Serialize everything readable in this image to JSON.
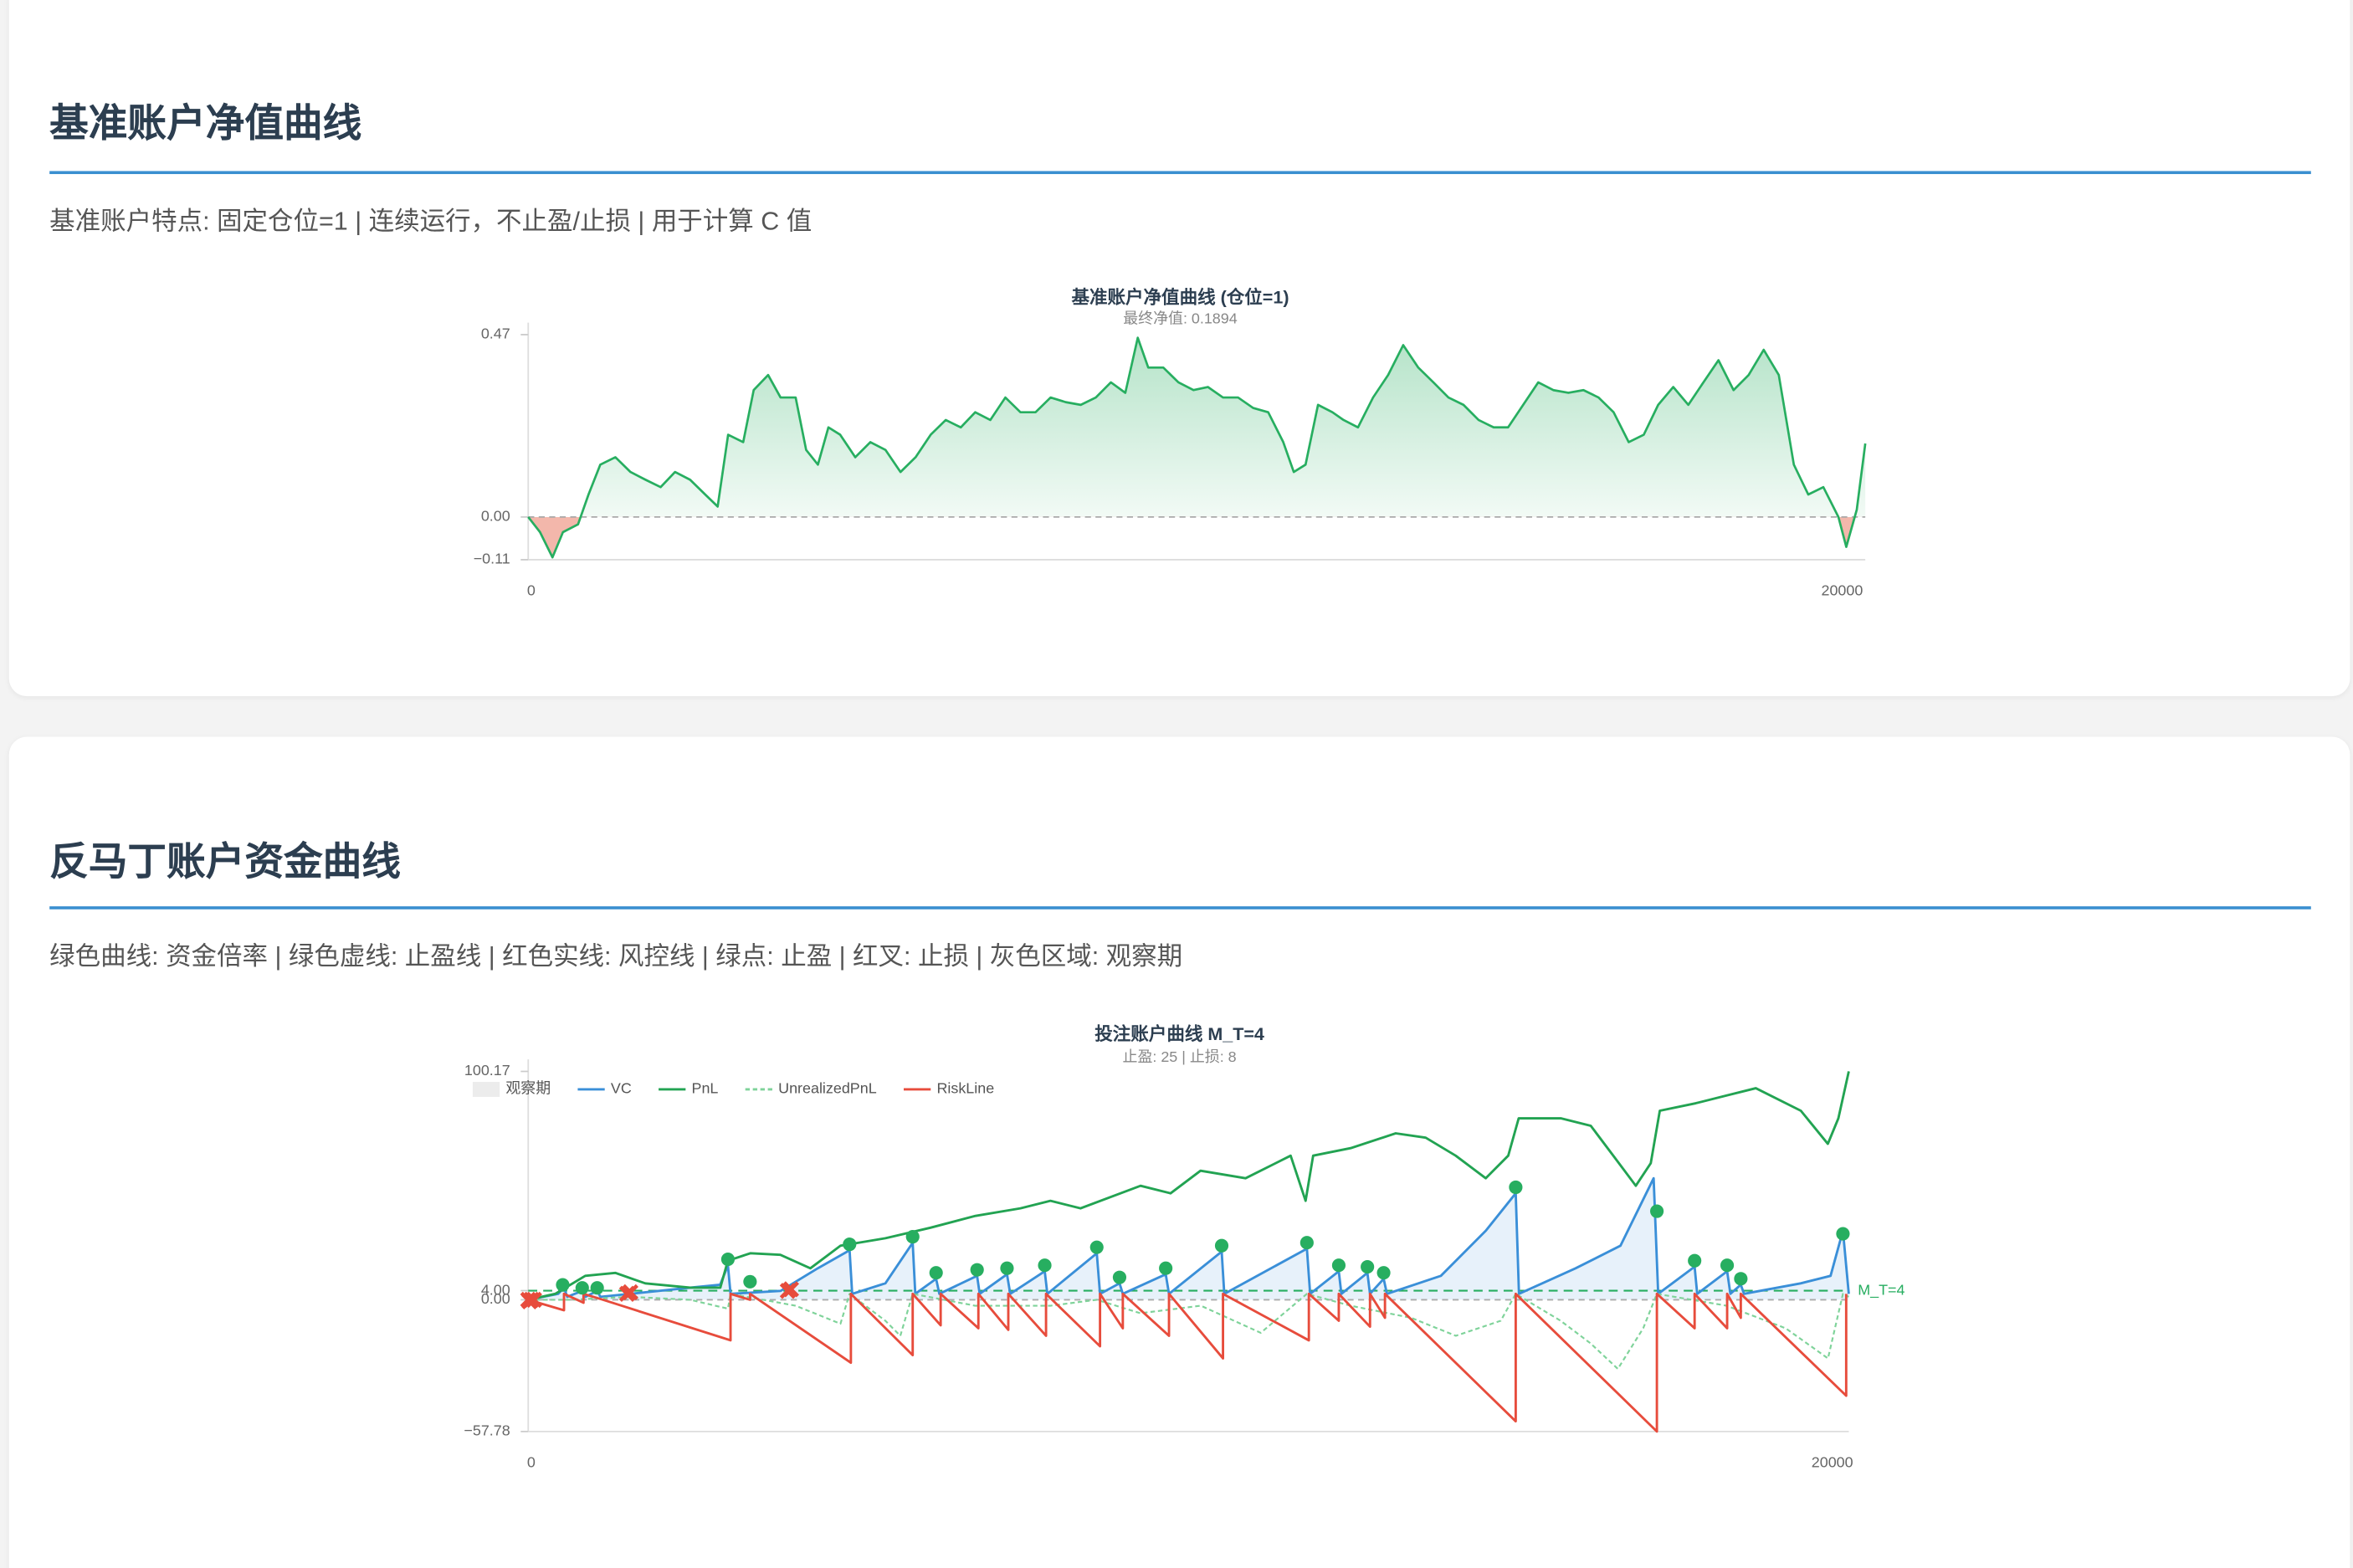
{
  "sections": [
    {
      "heading": "基准账户净值曲线",
      "description": "基准账户特点: 固定仓位=1 | 连续运行，不止盈/止损 | 用于计算 C 值"
    },
    {
      "heading": "反马丁账户资金曲线",
      "description": "绿色曲线: 资金倍率 | 绿色虚线: 止盈线 | 红色实线: 风控线 | 绿点: 止盈 | 红叉: 止损 | 灰色区域: 观察期"
    }
  ],
  "chart_data": [
    {
      "type": "area",
      "title": "基准账户净值曲线 (仓位=1)",
      "subtitle": "最终净值: 0.1894",
      "color": "#27ae60",
      "negative_color": "#ef9f8f",
      "zero_line": true,
      "xlim": [
        0,
        20400
      ],
      "ylim": [
        -0.11,
        0.47
      ],
      "xticks": [
        0,
        20000
      ],
      "yticks": [
        {
          "value": -0.11,
          "label": "−0.11"
        },
        {
          "value": 0,
          "label": "0.00"
        },
        0.47
      ],
      "x": [
        0,
        180,
        370,
        530,
        760,
        920,
        1100,
        1330,
        1560,
        1790,
        2020,
        2240,
        2470,
        2700,
        2890,
        3050,
        3280,
        3440,
        3660,
        3850,
        4080,
        4240,
        4420,
        4580,
        4760,
        4990,
        5220,
        5450,
        5680,
        5910,
        6140,
        6370,
        6600,
        6820,
        7050,
        7280,
        7510,
        7740,
        7970,
        8200,
        8430,
        8660,
        8890,
        9110,
        9300,
        9460,
        9690,
        9920,
        10150,
        10370,
        10600,
        10830,
        11060,
        11290,
        11520,
        11680,
        11860,
        12050,
        12270,
        12440,
        12660,
        12890,
        13120,
        13350,
        13580,
        13810,
        14040,
        14270,
        14500,
        14730,
        14950,
        15180,
        15410,
        15640,
        15870,
        16100,
        16330,
        16560,
        16790,
        17020,
        17240,
        17470,
        17700,
        17930,
        18160,
        18390,
        18620,
        18850,
        19080,
        19310,
        19530,
        19760,
        19990,
        20110,
        20270,
        20400
      ],
      "values": [
        0,
        -0.039,
        -0.104,
        -0.039,
        -0.019,
        0.058,
        0.135,
        0.154,
        0.116,
        0.096,
        0.077,
        0.116,
        0.096,
        0.058,
        0.027,
        0.212,
        0.193,
        0.327,
        0.366,
        0.308,
        0.308,
        0.173,
        0.135,
        0.231,
        0.212,
        0.154,
        0.193,
        0.173,
        0.116,
        0.154,
        0.212,
        0.25,
        0.231,
        0.27,
        0.25,
        0.308,
        0.27,
        0.27,
        0.308,
        0.296,
        0.289,
        0.308,
        0.347,
        0.32,
        0.462,
        0.385,
        0.385,
        0.347,
        0.327,
        0.335,
        0.308,
        0.308,
        0.281,
        0.27,
        0.193,
        0.116,
        0.135,
        0.289,
        0.27,
        0.25,
        0.231,
        0.308,
        0.366,
        0.443,
        0.385,
        0.347,
        0.308,
        0.289,
        0.25,
        0.231,
        0.231,
        0.289,
        0.347,
        0.327,
        0.32,
        0.327,
        0.308,
        0.27,
        0.193,
        0.212,
        0.289,
        0.335,
        0.289,
        0.347,
        0.404,
        0.327,
        0.366,
        0.431,
        0.366,
        0.135,
        0.058,
        0.077,
        0,
        -0.077,
        0.019,
        0.1894
      ]
    },
    {
      "type": "line",
      "title": "投注账户曲线 M_T=4",
      "subtitle": "止盈: 25 | 止损: 8",
      "zero_line": true,
      "legend": "top-left",
      "xlim": [
        0,
        20300
      ],
      "ylim": [
        -57.78,
        100.17
      ],
      "xticks": [
        0,
        20000
      ],
      "yticks": [
        {
          "value": -57.78,
          "label": "−57.78"
        },
        {
          "value": 0,
          "label": "0.00"
        },
        {
          "value": 4,
          "label": "4.00"
        },
        100.17
      ],
      "reference_line": {
        "value": 4,
        "label": "M_T=4",
        "color": "#27ae60"
      },
      "series": [
        {
          "name": "观察期",
          "color": "#d9d9d9",
          "x": [],
          "values": []
        },
        {
          "name": "VC",
          "color": "#3a8fd8",
          "fill": true,
          "x": [
            0,
            460,
            550,
            600,
            830,
            880,
            1060,
            1110,
            1570,
            2490,
            2950,
            3070,
            3110,
            3880,
            4450,
            4940,
            4980,
            5490,
            5910,
            5950,
            6270,
            6320,
            6900,
            6940,
            7360,
            7410,
            7940,
            7980,
            8740,
            8790,
            9090,
            9140,
            9800,
            9850,
            10660,
            10700,
            11970,
            12020,
            12460,
            12500,
            12900,
            12940,
            13150,
            13200,
            14030,
            14720,
            15180,
            15230,
            16100,
            16790,
            17300,
            17370,
            17930,
            17970,
            18430,
            18480,
            18640,
            18690,
            19560,
            20020,
            20210,
            20300
          ],
          "values": [
            0,
            2.6,
            5.3,
            1.3,
            3.9,
            1.3,
            3.9,
            1.3,
            2.6,
            5.3,
            6.6,
            15.1,
            2.6,
            3.9,
            13.8,
            21.7,
            2.6,
            7.2,
            25,
            2.6,
            9.2,
            2.6,
            10.5,
            2.6,
            11.2,
            2.6,
            12.5,
            2.6,
            20.4,
            2.6,
            7.2,
            2.6,
            11.2,
            2.6,
            21.1,
            2.6,
            22.4,
            2.6,
            12.5,
            2.6,
            11.8,
            2.6,
            9.2,
            2.6,
            10.5,
            30.3,
            46.7,
            2.6,
            13.8,
            23.7,
            53.3,
            2.6,
            14.5,
            2.6,
            12.5,
            2.6,
            6.6,
            2.6,
            7.2,
            10.5,
            30.3,
            2.6
          ]
        },
        {
          "name": "PnL",
          "color": "#22a352",
          "x": [
            0,
            415,
            877,
            1338,
            1799,
            2492,
            2953,
            3068,
            3414,
            3876,
            4337,
            4799,
            5491,
            6183,
            6875,
            7567,
            8028,
            8490,
            9413,
            9874,
            10335,
            11027,
            11720,
            11950,
            12066,
            12642,
            13335,
            13796,
            14257,
            14719,
            15065,
            15226,
            15872,
            16334,
            16680,
            17026,
            17256,
            17395,
            17948,
            18410,
            18871,
            19563,
            19978,
            20140,
            20300
          ],
          "values": [
            0,
            2.6,
            10.5,
            11.8,
            7.2,
            5.3,
            5.3,
            17.1,
            20.4,
            19.7,
            13.8,
            23.7,
            27,
            31.6,
            36.8,
            40.1,
            43.4,
            40.1,
            50,
            46.7,
            56.6,
            53.3,
            63.2,
            43.4,
            63.2,
            66.5,
            73,
            71.1,
            63.2,
            53.3,
            63.2,
            79.6,
            79.6,
            76.3,
            63.2,
            50,
            59.9,
            82.9,
            86.2,
            89.5,
            92.8,
            82.9,
            68.4,
            79.6,
            100.17
          ]
        },
        {
          "name": "UnrealizedPnL",
          "color": "#7fd39a",
          "dash": true,
          "x": [
            0,
            650,
            1570,
            2490,
            3070,
            3110,
            4110,
            4800,
            4940,
            5490,
            5720,
            5910,
            6870,
            8030,
            8740,
            9410,
            10340,
            11260,
            11970,
            12640,
            13570,
            14260,
            14950,
            15180,
            15870,
            16330,
            16750,
            17140,
            17350,
            18420,
            19330,
            19980,
            20210,
            20300
          ],
          "values": [
            0,
            0,
            1.3,
            0,
            -3.9,
            2.6,
            -2.6,
            -10.5,
            2.6,
            -9.2,
            -15.8,
            2.6,
            -2.6,
            -2.6,
            0,
            -5.9,
            -2.6,
            -14.5,
            2.6,
            -2.6,
            -7.9,
            -15.8,
            -9.2,
            2.6,
            -9.2,
            -19.1,
            -30.3,
            -12.5,
            2.6,
            -2.6,
            -12.5,
            -25.7,
            2.6,
            1.3
          ]
        },
        {
          "name": "RiskLine",
          "color": "#e74c3c",
          "x": [
            0,
            550,
            550,
            850,
            850,
            1150,
            3110,
            3110,
            3410,
            3410,
            4960,
            4960,
            5910,
            5910,
            6340,
            6340,
            6920,
            6920,
            7380,
            7380,
            7960,
            7960,
            8790,
            8790,
            9140,
            9140,
            9850,
            9850,
            10680,
            10680,
            12000,
            12000,
            12460,
            12460,
            12940,
            12940,
            13170,
            13170,
            15180,
            15180,
            17350,
            17350,
            17930,
            17930,
            18430,
            18430,
            18640,
            18640,
            20260,
            20260
          ],
          "values": [
            0,
            -4.6,
            2.6,
            -1.3,
            2.6,
            0,
            -17.8,
            2.6,
            0,
            2.6,
            -27.6,
            2.6,
            -24.3,
            2.6,
            -11.2,
            2.6,
            -12.5,
            2.6,
            -13.2,
            2.6,
            -15.8,
            2.6,
            -20.4,
            2.6,
            -12.5,
            2.6,
            -15.8,
            2.6,
            -25.7,
            2.6,
            -17.8,
            2.6,
            -9.2,
            2.6,
            -11.8,
            2.6,
            -7.9,
            2.6,
            -53.3,
            2.6,
            -57.78,
            2.6,
            -12.5,
            2.6,
            -12.5,
            2.6,
            -7.9,
            2.6,
            -42.1,
            2.6
          ]
        }
      ],
      "take_profit": {
        "color": "#27ae60",
        "x": [
          530,
          830,
          1060,
          3070,
          3410,
          4940,
          5910,
          6270,
          6900,
          7360,
          7940,
          8740,
          9090,
          9800,
          10660,
          11970,
          12460,
          12900,
          13150,
          15180,
          17350,
          17930,
          18430,
          18640,
          20210
        ],
        "values": [
          3.9,
          2.6,
          2.6,
          15.1,
          5.3,
          21.7,
          25,
          9.2,
          10.5,
          11.2,
          12.5,
          20.4,
          7.2,
          11.2,
          21.1,
          22.4,
          12.5,
          11.8,
          9.2,
          46.7,
          36.2,
          14.5,
          12.5,
          6.6,
          26.3
        ]
      },
      "stop_loss": {
        "color": "#e74c3c",
        "x": [
          0,
          20,
          50,
          90,
          1520,
          1570,
          3990,
          4040
        ],
        "values": [
          0,
          -0.7,
          0,
          0,
          2.6,
          3.3,
          3.9,
          4.6
        ]
      }
    }
  ]
}
